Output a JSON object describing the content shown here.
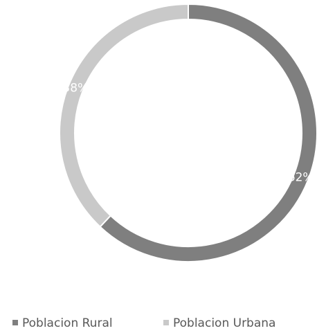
{
  "chart_data": {
    "type": "donut",
    "categories": [
      "Poblacion Rural",
      "Poblacion Urbana"
    ],
    "values": [
      62,
      38
    ],
    "value_labels": [
      "62%",
      "38%"
    ],
    "colors": [
      "#7f7f7f",
      "#c9c9c9"
    ],
    "legend": "bottom"
  }
}
